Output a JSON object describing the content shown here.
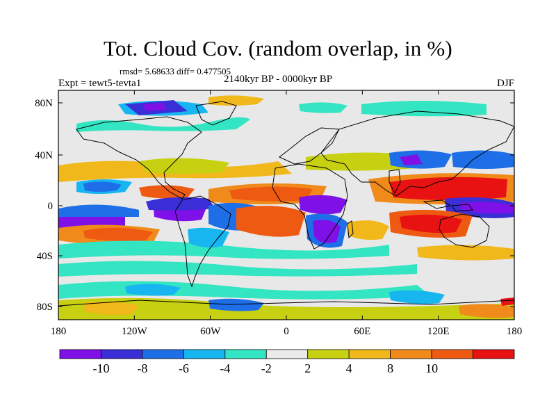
{
  "header": {
    "title": "Tot. Cloud Cov. (random overlap, in %)",
    "stats": "rmsd= 5.68633 diff= 0.477505",
    "experiment": "Expt = tewt5-tevta1",
    "period": "2140kyr BP - 0000kyr BP",
    "season": "DJF"
  },
  "map": {
    "x_ticks": [
      "180",
      "120W",
      "60W",
      "0",
      "60E",
      "120E",
      "180"
    ],
    "y_ticks": [
      "80N",
      "40N",
      "0",
      "40S",
      "80S"
    ]
  },
  "colorbar": {
    "labels": [
      "-10",
      "-8",
      "-6",
      "-4",
      "-2",
      "2",
      "4",
      "8",
      "10"
    ],
    "colors": [
      "#7f10e8",
      "#3a2fd6",
      "#1e6ee8",
      "#17b6f0",
      "#33e5c2",
      "#eaeaea",
      "#c7d011",
      "#f0b81a",
      "#f08a1a",
      "#ee5a12",
      "#e81212"
    ]
  }
}
